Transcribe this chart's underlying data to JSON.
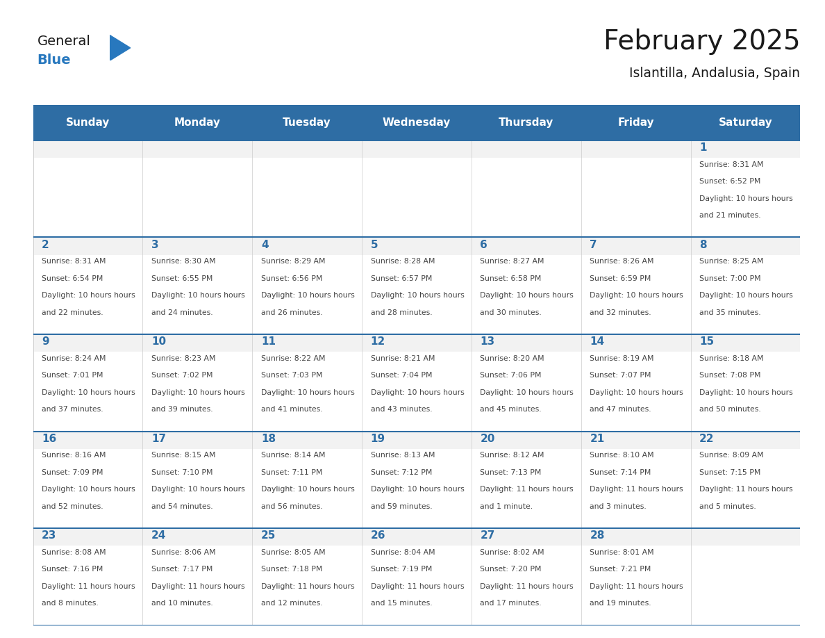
{
  "title": "February 2025",
  "subtitle": "Islantilla, Andalusia, Spain",
  "days_of_week": [
    "Sunday",
    "Monday",
    "Tuesday",
    "Wednesday",
    "Thursday",
    "Friday",
    "Saturday"
  ],
  "header_bg_color": "#2E6DA4",
  "header_text_color": "#FFFFFF",
  "cell_bg_color": "#FFFFFF",
  "cell_alt_bg_color": "#F2F2F2",
  "grid_line_color": "#2E6DA4",
  "day_number_color": "#2E6DA4",
  "info_text_color": "#444444",
  "title_color": "#1a1a1a",
  "subtitle_color": "#1a1a1a",
  "logo_general_color": "#1a1a1a",
  "logo_blue_color": "#2878BE",
  "calendar_data": [
    [
      null,
      null,
      null,
      null,
      null,
      null,
      {
        "day": 1,
        "sunrise": "8:31 AM",
        "sunset": "6:52 PM",
        "daylight": "10 hours and 21 minutes."
      }
    ],
    [
      {
        "day": 2,
        "sunrise": "8:31 AM",
        "sunset": "6:54 PM",
        "daylight": "10 hours and 22 minutes."
      },
      {
        "day": 3,
        "sunrise": "8:30 AM",
        "sunset": "6:55 PM",
        "daylight": "10 hours and 24 minutes."
      },
      {
        "day": 4,
        "sunrise": "8:29 AM",
        "sunset": "6:56 PM",
        "daylight": "10 hours and 26 minutes."
      },
      {
        "day": 5,
        "sunrise": "8:28 AM",
        "sunset": "6:57 PM",
        "daylight": "10 hours and 28 minutes."
      },
      {
        "day": 6,
        "sunrise": "8:27 AM",
        "sunset": "6:58 PM",
        "daylight": "10 hours and 30 minutes."
      },
      {
        "day": 7,
        "sunrise": "8:26 AM",
        "sunset": "6:59 PM",
        "daylight": "10 hours and 32 minutes."
      },
      {
        "day": 8,
        "sunrise": "8:25 AM",
        "sunset": "7:00 PM",
        "daylight": "10 hours and 35 minutes."
      }
    ],
    [
      {
        "day": 9,
        "sunrise": "8:24 AM",
        "sunset": "7:01 PM",
        "daylight": "10 hours and 37 minutes."
      },
      {
        "day": 10,
        "sunrise": "8:23 AM",
        "sunset": "7:02 PM",
        "daylight": "10 hours and 39 minutes."
      },
      {
        "day": 11,
        "sunrise": "8:22 AM",
        "sunset": "7:03 PM",
        "daylight": "10 hours and 41 minutes."
      },
      {
        "day": 12,
        "sunrise": "8:21 AM",
        "sunset": "7:04 PM",
        "daylight": "10 hours and 43 minutes."
      },
      {
        "day": 13,
        "sunrise": "8:20 AM",
        "sunset": "7:06 PM",
        "daylight": "10 hours and 45 minutes."
      },
      {
        "day": 14,
        "sunrise": "8:19 AM",
        "sunset": "7:07 PM",
        "daylight": "10 hours and 47 minutes."
      },
      {
        "day": 15,
        "sunrise": "8:18 AM",
        "sunset": "7:08 PM",
        "daylight": "10 hours and 50 minutes."
      }
    ],
    [
      {
        "day": 16,
        "sunrise": "8:16 AM",
        "sunset": "7:09 PM",
        "daylight": "10 hours and 52 minutes."
      },
      {
        "day": 17,
        "sunrise": "8:15 AM",
        "sunset": "7:10 PM",
        "daylight": "10 hours and 54 minutes."
      },
      {
        "day": 18,
        "sunrise": "8:14 AM",
        "sunset": "7:11 PM",
        "daylight": "10 hours and 56 minutes."
      },
      {
        "day": 19,
        "sunrise": "8:13 AM",
        "sunset": "7:12 PM",
        "daylight": "10 hours and 59 minutes."
      },
      {
        "day": 20,
        "sunrise": "8:12 AM",
        "sunset": "7:13 PM",
        "daylight": "11 hours and 1 minute."
      },
      {
        "day": 21,
        "sunrise": "8:10 AM",
        "sunset": "7:14 PM",
        "daylight": "11 hours and 3 minutes."
      },
      {
        "day": 22,
        "sunrise": "8:09 AM",
        "sunset": "7:15 PM",
        "daylight": "11 hours and 5 minutes."
      }
    ],
    [
      {
        "day": 23,
        "sunrise": "8:08 AM",
        "sunset": "7:16 PM",
        "daylight": "11 hours and 8 minutes."
      },
      {
        "day": 24,
        "sunrise": "8:06 AM",
        "sunset": "7:17 PM",
        "daylight": "11 hours and 10 minutes."
      },
      {
        "day": 25,
        "sunrise": "8:05 AM",
        "sunset": "7:18 PM",
        "daylight": "11 hours and 12 minutes."
      },
      {
        "day": 26,
        "sunrise": "8:04 AM",
        "sunset": "7:19 PM",
        "daylight": "11 hours and 15 minutes."
      },
      {
        "day": 27,
        "sunrise": "8:02 AM",
        "sunset": "7:20 PM",
        "daylight": "11 hours and 17 minutes."
      },
      {
        "day": 28,
        "sunrise": "8:01 AM",
        "sunset": "7:21 PM",
        "daylight": "11 hours and 19 minutes."
      },
      null
    ]
  ],
  "fig_width": 11.88,
  "fig_height": 9.18
}
